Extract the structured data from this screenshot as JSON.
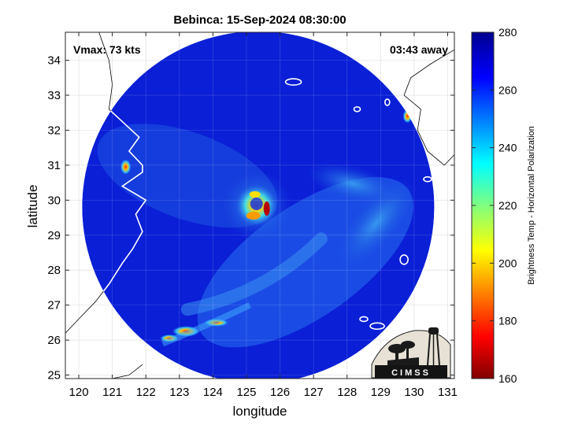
{
  "chart_data": {
    "type": "heatmap",
    "title": "Bebinca: 15-Sep-2024 08:30:00",
    "xlabel": "longitude",
    "ylabel": "latitude",
    "xlim": [
      119.6,
      131.2
    ],
    "ylim": [
      24.9,
      34.8
    ],
    "xticks": [
      120,
      121,
      122,
      123,
      124,
      125,
      126,
      127,
      128,
      129,
      130,
      131
    ],
    "yticks": [
      25,
      26,
      27,
      28,
      29,
      30,
      31,
      32,
      33,
      34
    ],
    "grid": true,
    "annotations": {
      "left": "Vmax: 73 kts",
      "right": "03:43 away"
    },
    "colorbar": {
      "label": "Brightness Temp - Horizontal Polarization",
      "range": [
        160,
        280
      ],
      "ticks": [
        160,
        180,
        200,
        220,
        240,
        260,
        280
      ],
      "colormap": "jet"
    },
    "swath": {
      "center_lon": 125.35,
      "center_lat": 29.8,
      "radius_deg_lon": 5.25
    },
    "storm_center": {
      "lon": 125.3,
      "lat": 29.85
    },
    "logo_text": "CIMSS"
  },
  "colors": {
    "background_low": "#0a1fd6",
    "background_high": "#1030c8",
    "coast": "#000000"
  }
}
